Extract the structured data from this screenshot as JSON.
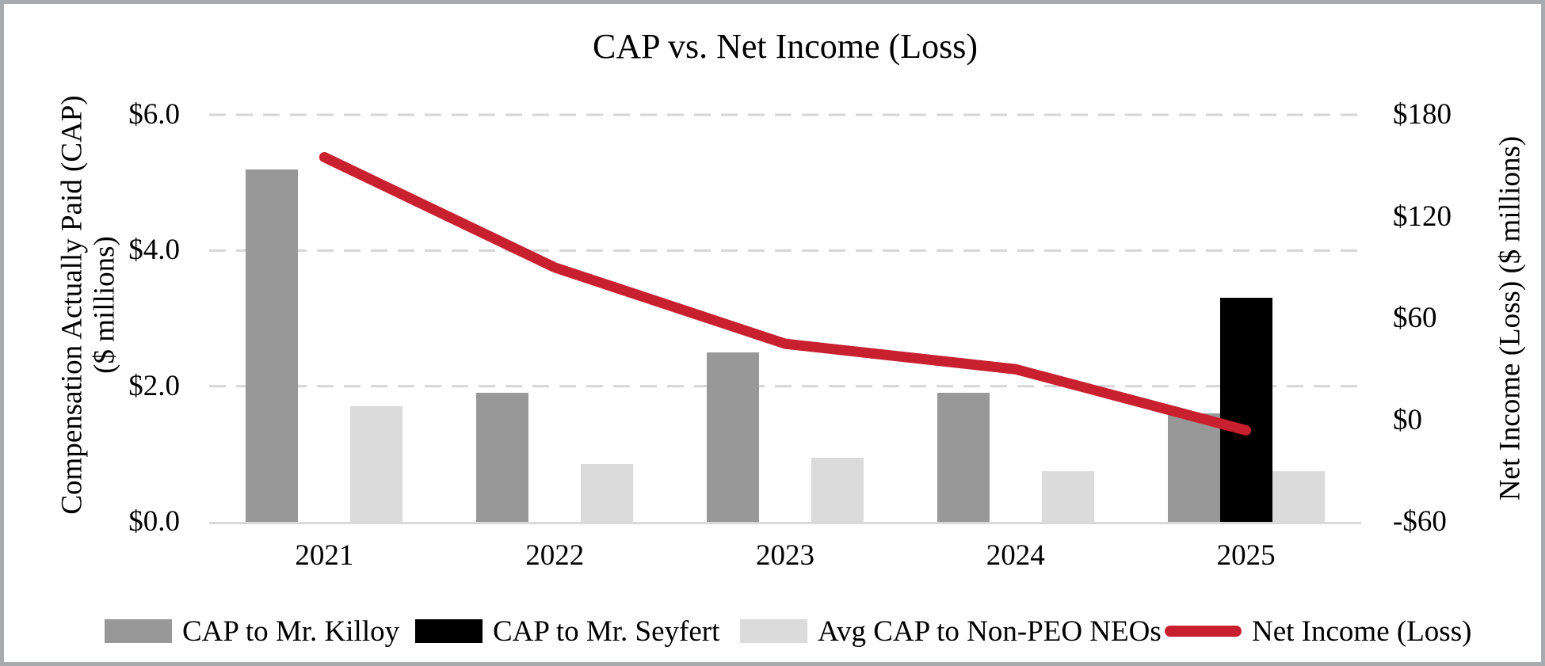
{
  "frame": {
    "background_color": "#ffffff",
    "border_color": "#a8abae"
  },
  "chart_data": {
    "type": "bar+line",
    "title": "CAP vs. Net Income (Loss)",
    "categories": [
      "2021",
      "2022",
      "2023",
      "2024",
      "2025"
    ],
    "bar_series": [
      {
        "name": "CAP to Mr. Killoy",
        "color": "#989898",
        "axis": "left",
        "values": [
          5.2,
          1.9,
          2.5,
          1.9,
          1.6
        ]
      },
      {
        "name": "CAP to Mr. Seyfert",
        "color": "#000000",
        "axis": "left",
        "values": [
          null,
          null,
          null,
          null,
          3.3
        ]
      },
      {
        "name": "Avg CAP to Non-PEO NEOs",
        "color": "#dbdbdb",
        "axis": "left",
        "values": [
          1.7,
          0.85,
          0.95,
          0.75,
          0.75
        ]
      }
    ],
    "line_series": [
      {
        "name": "Net Income (Loss)",
        "color": "#c8202f",
        "axis": "right",
        "values": [
          155,
          90,
          45,
          30,
          -6
        ]
      }
    ],
    "left_axis": {
      "title_line1": "Compensation Actually Paid (CAP)",
      "title_line2": "($ millions)",
      "tick_labels": [
        "$6.0",
        "$4.0",
        "$2.0",
        "$0.0"
      ],
      "tick_values": [
        6,
        4,
        2,
        0
      ],
      "min": 0,
      "max": 6
    },
    "right_axis": {
      "title": "Net Income (Loss) ($ millions)",
      "tick_labels": [
        "$180",
        "$120",
        "$60",
        "$0",
        "-$60"
      ],
      "tick_values": [
        180,
        120,
        60,
        0,
        -60
      ],
      "min": -60,
      "max": 180
    },
    "grid": {
      "horizontal_dashed_at_left_values": [
        6,
        4,
        2
      ],
      "color": "#d6d6d6"
    },
    "baseline_color": "#d9d9d9",
    "legend_position": "bottom"
  }
}
